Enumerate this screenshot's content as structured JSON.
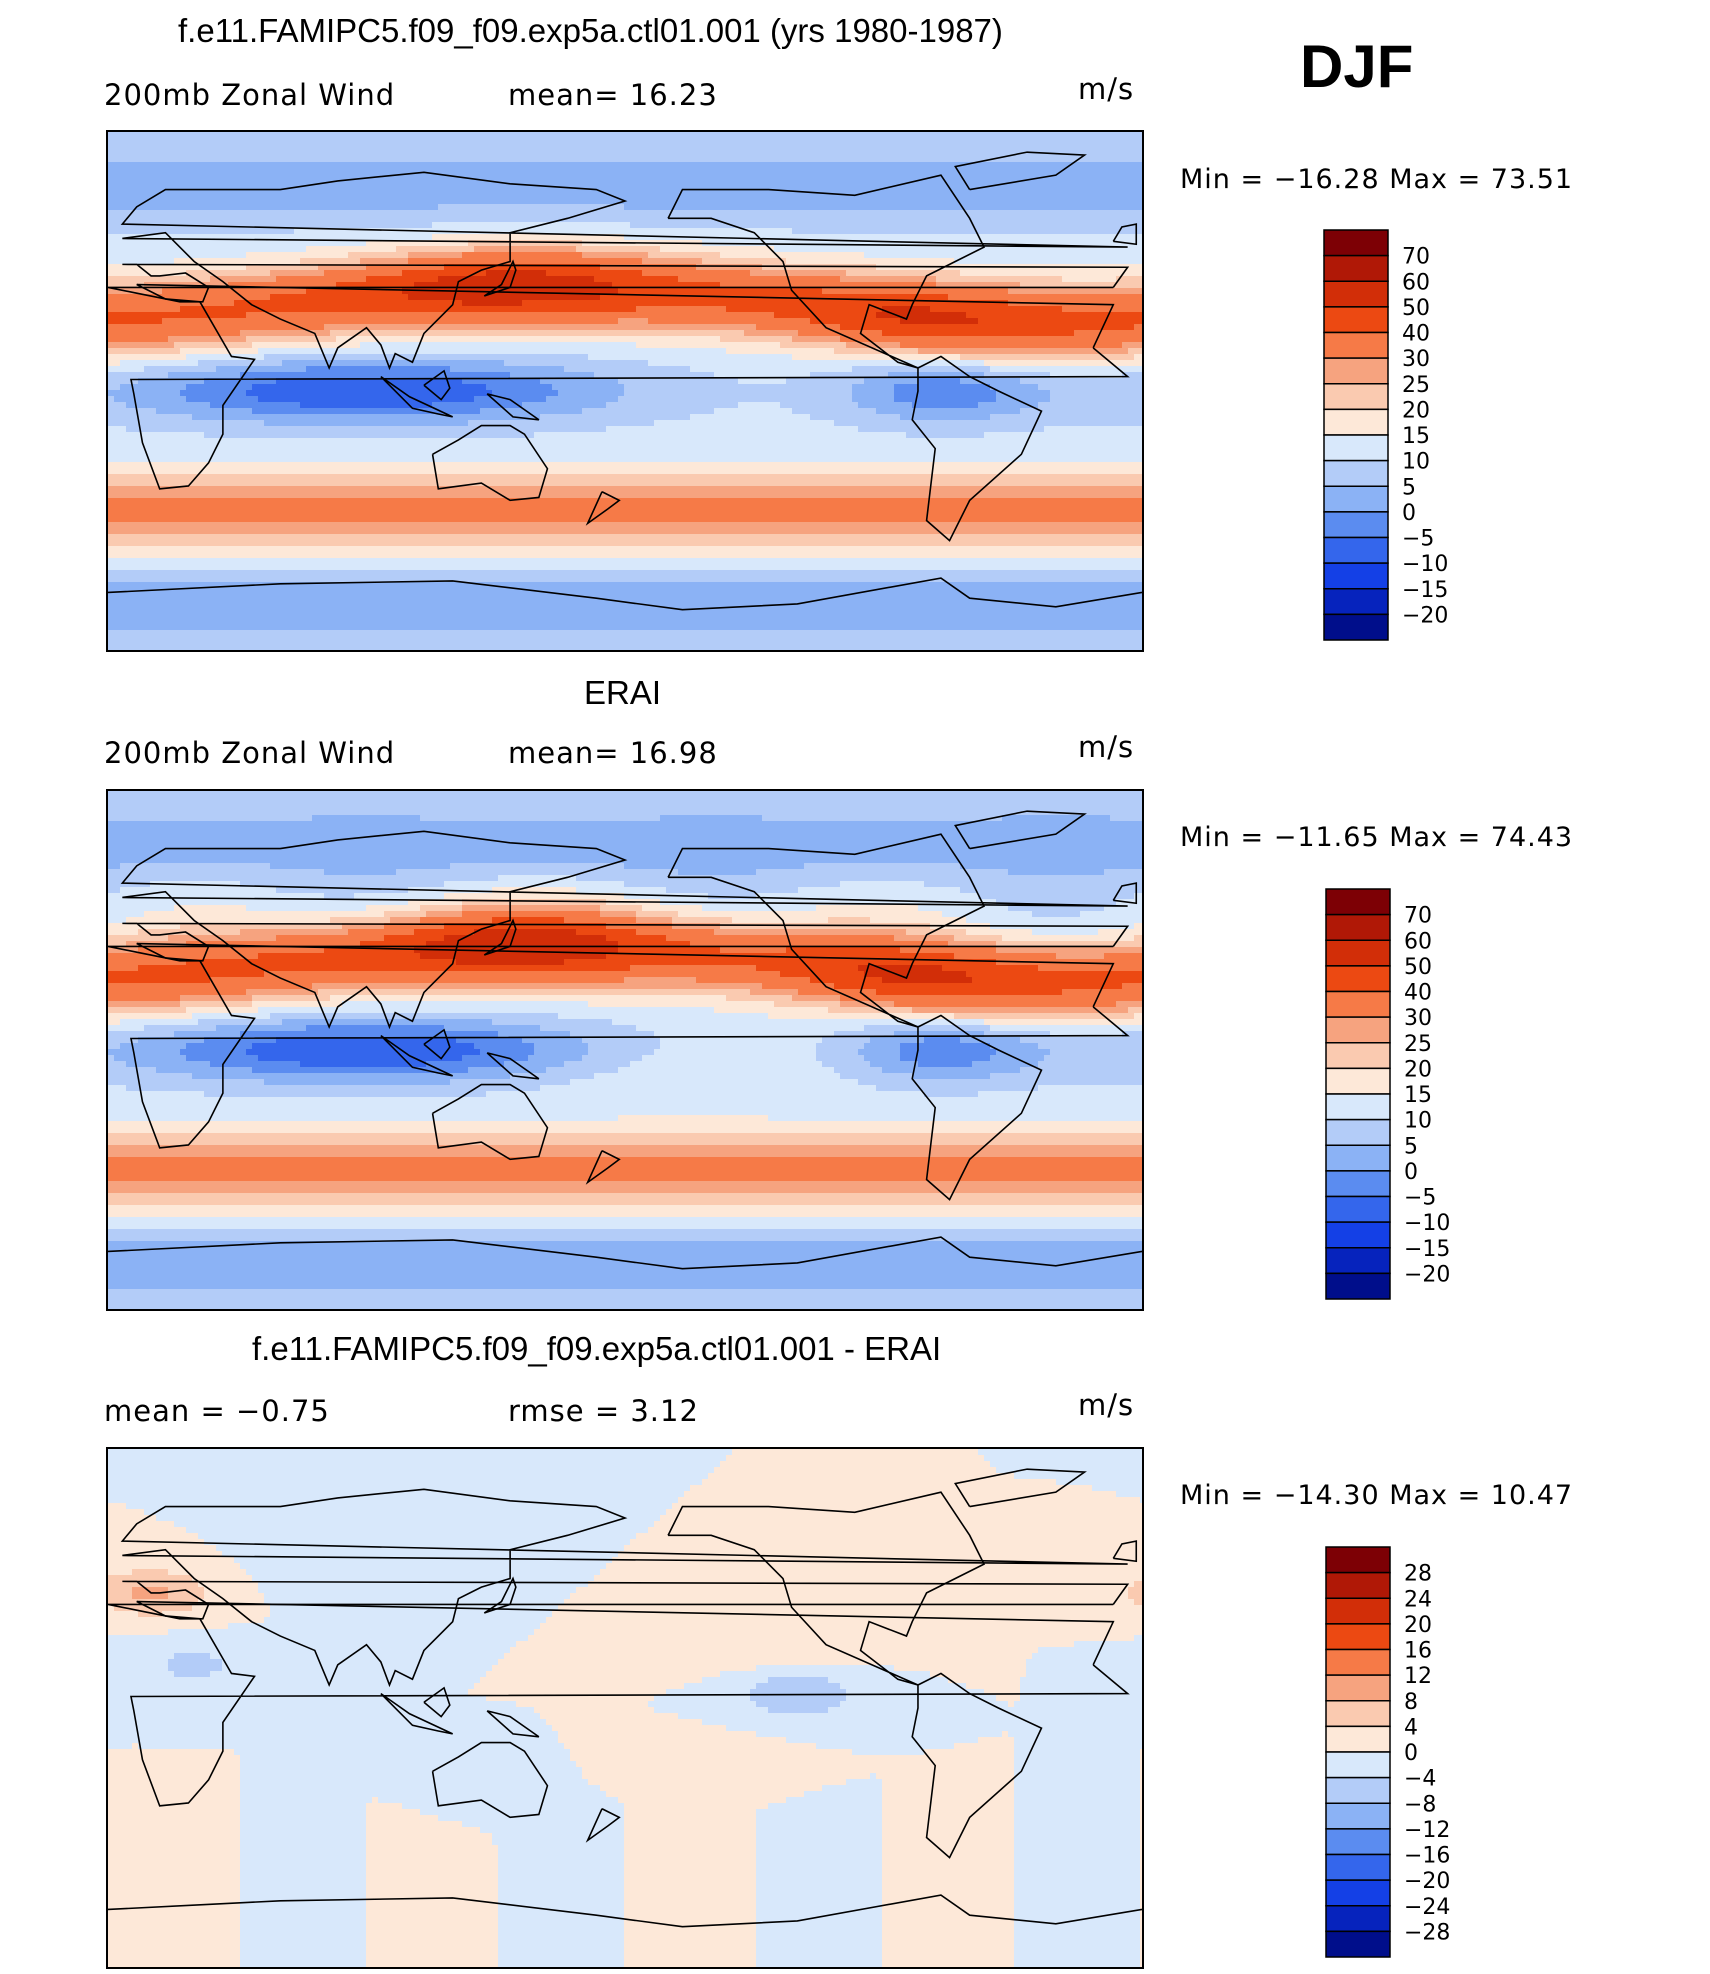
{
  "season": "DJF",
  "panels": [
    {
      "title": "f.e11.FAMIPC5.f09_f09.exp5a.ctl01.001 (yrs 1980-1987)",
      "left_text": "200mb  Zonal  Wind",
      "middle_text": "mean=   16.23",
      "units": "m/s",
      "minmax": "Min  =  −16.28  Max  =    73.51",
      "field": "model",
      "colorbar_labels": [
        "70",
        "60",
        "50",
        "40",
        "30",
        "25",
        "20",
        "15",
        "10",
        "5",
        "0",
        "−5",
        "−10",
        "−15",
        "−20"
      ]
    },
    {
      "title": "ERAI",
      "left_text": "200mb  Zonal  Wind",
      "middle_text": "mean=   16.98",
      "units": "m/s",
      "minmax": "Min  =  −11.65  Max  =    74.43",
      "field": "obs",
      "colorbar_labels": [
        "70",
        "60",
        "50",
        "40",
        "30",
        "25",
        "20",
        "15",
        "10",
        "5",
        "0",
        "−5",
        "−10",
        "−15",
        "−20"
      ]
    },
    {
      "title": "f.e11.FAMIPC5.f09_f09.exp5a.ctl01.001 - ERAI",
      "left_text": "mean  =     −0.75",
      "middle_text": "rmse  =     3.12",
      "units": "m/s",
      "minmax": "Min  =  −14.30  Max  =    10.47",
      "field": "diff",
      "colorbar_labels": [
        "28",
        "24",
        "20",
        "16",
        "12",
        "8",
        "4",
        "0",
        "−4",
        "−8",
        "−12",
        "−16",
        "−20",
        "−24",
        "−28"
      ]
    }
  ],
  "colors": {
    "palette": [
      "#7d0005",
      "#b01806",
      "#d22e08",
      "#ec4912",
      "#f67a47",
      "#f6a37f",
      "#facab0",
      "#fde8d8",
      "#d8e8fb",
      "#b3ccf8",
      "#8bb2f5",
      "#5b8cf0",
      "#3466ec",
      "#1440e6",
      "#0623bd",
      "#000e8b"
    ],
    "coastline": "#000000"
  }
}
